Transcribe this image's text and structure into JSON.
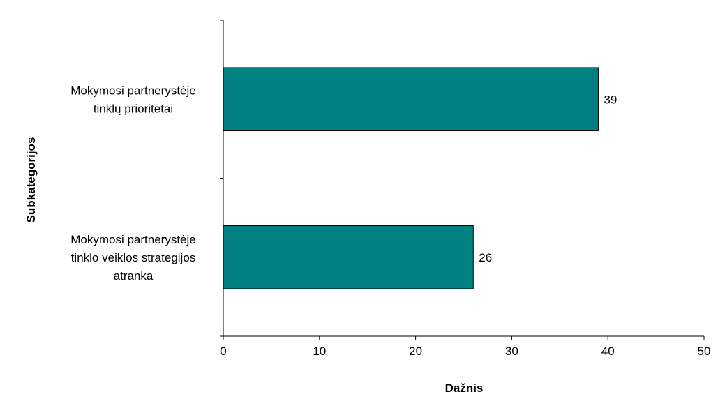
{
  "chart_data": {
    "type": "bar",
    "orientation": "horizontal",
    "title": "",
    "xlabel": "Dažnis",
    "ylabel": "Subkategorijos",
    "categories": [
      [
        "Mokymosi partnerystėje",
        "tinklų prioritetai"
      ],
      [
        "Mokymosi partnerystėje",
        "tinklo veiklos strategijos",
        "atranka"
      ]
    ],
    "values": [
      39,
      26
    ],
    "data_labels": [
      "39",
      "26"
    ],
    "xlim": [
      0,
      50
    ],
    "x_ticks": [
      0,
      10,
      20,
      30,
      40,
      50
    ],
    "x_tick_labels": [
      "0",
      "10",
      "20",
      "30",
      "40",
      "50"
    ],
    "grid": false,
    "legend": "none",
    "colors": {
      "bar_fill": "#008080",
      "bar_stroke": "#000000",
      "frame": "#000000",
      "background": "#ffffff"
    }
  }
}
